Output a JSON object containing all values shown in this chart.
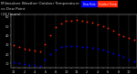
{
  "title": "Milwaukee Weather Outdoor Temperature vs Dew Point (24 Hours)",
  "legend_labels": [
    "Dew Point",
    "Outdoor Temp"
  ],
  "legend_colors": [
    "#0000cc",
    "#dd0000"
  ],
  "x_labels": [
    "12",
    "1",
    "2",
    "3",
    "4",
    "5",
    "6",
    "7",
    "8",
    "9",
    "10",
    "11",
    "12",
    "1",
    "2",
    "3",
    "4",
    "5",
    "6",
    "7",
    "8",
    "9",
    "10",
    "11"
  ],
  "temp_x": [
    0,
    1,
    2,
    3,
    4,
    5,
    6,
    7,
    8,
    9,
    10,
    11,
    12,
    13,
    14,
    15,
    16,
    17,
    18,
    19,
    20,
    21,
    22,
    23
  ],
  "temp_y": [
    29,
    27,
    25,
    24,
    23,
    22,
    30,
    40,
    48,
    52,
    55,
    55,
    56,
    55,
    54,
    53,
    51,
    49,
    47,
    44,
    41,
    39,
    37,
    35
  ],
  "dew_x": [
    0,
    1,
    2,
    3,
    4,
    5,
    6,
    7,
    8,
    9,
    10,
    11,
    12,
    13,
    14,
    15,
    16,
    17,
    18,
    19,
    20,
    21,
    22,
    23
  ],
  "dew_y": [
    11,
    10,
    9,
    8,
    8,
    7,
    14,
    19,
    24,
    27,
    28,
    28,
    28,
    27,
    27,
    26,
    25,
    24,
    22,
    20,
    18,
    16,
    14,
    12
  ],
  "ylim": [
    5,
    62
  ],
  "ytick_vals": [
    10,
    20,
    30,
    40,
    50,
    60
  ],
  "ytick_labels": [
    "10",
    "20",
    "30",
    "40",
    "50",
    "60"
  ],
  "temp_color": "#ff2200",
  "dew_color": "#0000ff",
  "grid_color": "#888888",
  "bg_color": "#000000",
  "text_color": "#cccccc",
  "marker_size": 1.8,
  "title_fontsize": 3.0,
  "tick_fontsize": 2.5
}
